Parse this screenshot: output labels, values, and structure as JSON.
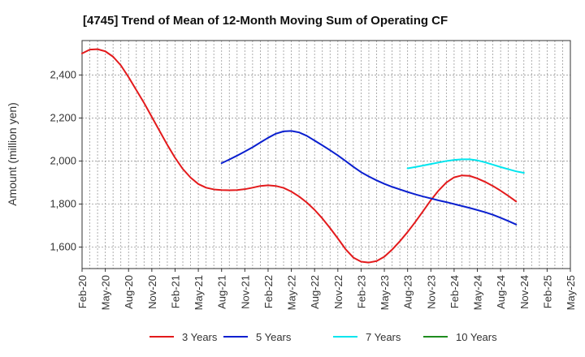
{
  "chart_data": {
    "type": "line",
    "title": "[4745]  Trend of Mean of 12-Month Moving Sum of Operating CF",
    "xlabel": "",
    "ylabel": "Amount (million yen)",
    "ylim": [
      1500,
      2560
    ],
    "yticks": [
      1600,
      1800,
      2000,
      2200,
      2400
    ],
    "ytick_labels": [
      "1,600",
      "1,800",
      "2,000",
      "2,200",
      "2,400"
    ],
    "x_tick_labels": [
      "Feb-20",
      "May-20",
      "Aug-20",
      "Nov-20",
      "Feb-21",
      "May-21",
      "Aug-21",
      "Nov-21",
      "Feb-22",
      "May-22",
      "Aug-22",
      "Nov-22",
      "Feb-23",
      "May-23",
      "Aug-23",
      "Nov-23",
      "Feb-24",
      "May-24",
      "Aug-24",
      "Nov-24",
      "Feb-25",
      "May-25"
    ],
    "grid": true,
    "legend_position": "bottom",
    "series": [
      {
        "name": "3 Years",
        "color": "#e31a1c",
        "points": [
          [
            0,
            2500
          ],
          [
            1,
            2518
          ],
          [
            2,
            2520
          ],
          [
            3,
            2510
          ],
          [
            4,
            2485
          ],
          [
            5,
            2445
          ],
          [
            6,
            2390
          ],
          [
            7,
            2330
          ],
          [
            8,
            2270
          ],
          [
            9,
            2205
          ],
          [
            10,
            2140
          ],
          [
            11,
            2075
          ],
          [
            12,
            2015
          ],
          [
            13,
            1963
          ],
          [
            14,
            1923
          ],
          [
            15,
            1893
          ],
          [
            16,
            1876
          ],
          [
            17,
            1868
          ],
          [
            18,
            1865
          ],
          [
            19,
            1864
          ],
          [
            20,
            1865
          ],
          [
            21,
            1869
          ],
          [
            22,
            1876
          ],
          [
            23,
            1884
          ],
          [
            24,
            1887
          ],
          [
            25,
            1884
          ],
          [
            26,
            1875
          ],
          [
            27,
            1858
          ],
          [
            28,
            1835
          ],
          [
            29,
            1807
          ],
          [
            30,
            1773
          ],
          [
            31,
            1733
          ],
          [
            32,
            1688
          ],
          [
            33,
            1640
          ],
          [
            34,
            1590
          ],
          [
            35,
            1551
          ],
          [
            36,
            1532
          ],
          [
            37,
            1528
          ],
          [
            38,
            1535
          ],
          [
            39,
            1555
          ],
          [
            40,
            1588
          ],
          [
            41,
            1627
          ],
          [
            42,
            1670
          ],
          [
            43,
            1717
          ],
          [
            44,
            1767
          ],
          [
            45,
            1818
          ],
          [
            46,
            1863
          ],
          [
            47,
            1900
          ],
          [
            48,
            1924
          ],
          [
            49,
            1933
          ],
          [
            50,
            1931
          ],
          [
            51,
            1919
          ],
          [
            52,
            1903
          ],
          [
            53,
            1884
          ],
          [
            54,
            1862
          ],
          [
            55,
            1838
          ],
          [
            56,
            1812
          ]
        ]
      },
      {
        "name": "5 Years",
        "color": "#0a1fcf",
        "points": [
          [
            18,
            1990
          ],
          [
            19,
            2007
          ],
          [
            20,
            2025
          ],
          [
            21,
            2044
          ],
          [
            22,
            2064
          ],
          [
            23,
            2086
          ],
          [
            24,
            2108
          ],
          [
            25,
            2127
          ],
          [
            26,
            2138
          ],
          [
            27,
            2140
          ],
          [
            28,
            2133
          ],
          [
            29,
            2117
          ],
          [
            30,
            2095
          ],
          [
            31,
            2073
          ],
          [
            32,
            2050
          ],
          [
            33,
            2026
          ],
          [
            34,
            2000
          ],
          [
            35,
            1973
          ],
          [
            36,
            1948
          ],
          [
            37,
            1928
          ],
          [
            38,
            1910
          ],
          [
            39,
            1894
          ],
          [
            40,
            1880
          ],
          [
            41,
            1868
          ],
          [
            42,
            1856
          ],
          [
            43,
            1845
          ],
          [
            44,
            1835
          ],
          [
            45,
            1826
          ],
          [
            46,
            1817
          ],
          [
            47,
            1809
          ],
          [
            48,
            1800
          ],
          [
            49,
            1791
          ],
          [
            50,
            1782
          ],
          [
            51,
            1772
          ],
          [
            52,
            1762
          ],
          [
            53,
            1750
          ],
          [
            54,
            1736
          ],
          [
            55,
            1721
          ],
          [
            56,
            1705
          ]
        ]
      },
      {
        "name": "7 Years",
        "color": "#00e5ee",
        "points": [
          [
            42,
            1966
          ],
          [
            43,
            1972
          ],
          [
            44,
            1979
          ],
          [
            45,
            1986
          ],
          [
            46,
            1993
          ],
          [
            47,
            2000
          ],
          [
            48,
            2005
          ],
          [
            49,
            2008
          ],
          [
            50,
            2008
          ],
          [
            51,
            2003
          ],
          [
            52,
            1994
          ],
          [
            53,
            1983
          ],
          [
            54,
            1972
          ],
          [
            55,
            1962
          ],
          [
            56,
            1952
          ],
          [
            57,
            1945
          ]
        ]
      },
      {
        "name": "10 Years",
        "color": "#1e8c1e",
        "points": []
      }
    ]
  }
}
